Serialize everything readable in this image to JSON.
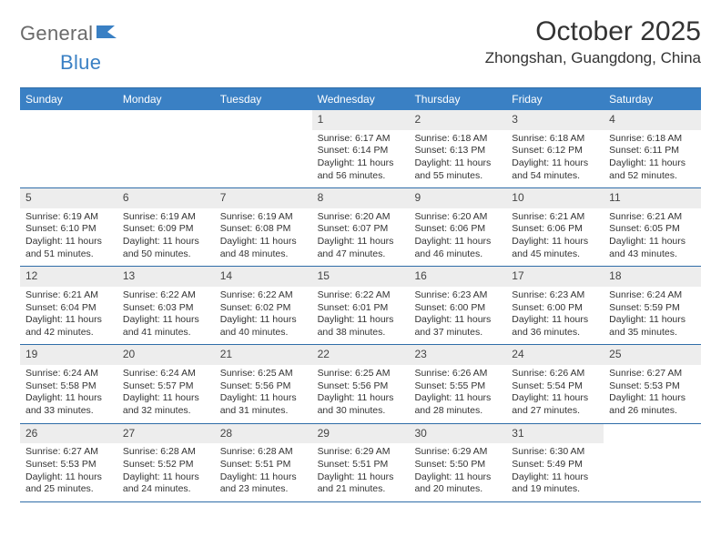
{
  "logo": {
    "word1": "General",
    "word2": "Blue"
  },
  "title": "October 2025",
  "location": "Zhongshan, Guangdong, China",
  "colors": {
    "header_bg": "#3a80c4",
    "header_border": "#2f6da8",
    "daynum_bg": "#ededed",
    "text": "#333333",
    "logo_grey": "#6a6a6a",
    "logo_blue": "#3a80c4"
  },
  "dayNames": [
    "Sunday",
    "Monday",
    "Tuesday",
    "Wednesday",
    "Thursday",
    "Friday",
    "Saturday"
  ],
  "weeks": [
    [
      {
        "empty": true
      },
      {
        "empty": true
      },
      {
        "empty": true
      },
      {
        "n": "1",
        "sr": "Sunrise: 6:17 AM",
        "ss": "Sunset: 6:14 PM",
        "dl": "Daylight: 11 hours and 56 minutes."
      },
      {
        "n": "2",
        "sr": "Sunrise: 6:18 AM",
        "ss": "Sunset: 6:13 PM",
        "dl": "Daylight: 11 hours and 55 minutes."
      },
      {
        "n": "3",
        "sr": "Sunrise: 6:18 AM",
        "ss": "Sunset: 6:12 PM",
        "dl": "Daylight: 11 hours and 54 minutes."
      },
      {
        "n": "4",
        "sr": "Sunrise: 6:18 AM",
        "ss": "Sunset: 6:11 PM",
        "dl": "Daylight: 11 hours and 52 minutes."
      }
    ],
    [
      {
        "n": "5",
        "sr": "Sunrise: 6:19 AM",
        "ss": "Sunset: 6:10 PM",
        "dl": "Daylight: 11 hours and 51 minutes."
      },
      {
        "n": "6",
        "sr": "Sunrise: 6:19 AM",
        "ss": "Sunset: 6:09 PM",
        "dl": "Daylight: 11 hours and 50 minutes."
      },
      {
        "n": "7",
        "sr": "Sunrise: 6:19 AM",
        "ss": "Sunset: 6:08 PM",
        "dl": "Daylight: 11 hours and 48 minutes."
      },
      {
        "n": "8",
        "sr": "Sunrise: 6:20 AM",
        "ss": "Sunset: 6:07 PM",
        "dl": "Daylight: 11 hours and 47 minutes."
      },
      {
        "n": "9",
        "sr": "Sunrise: 6:20 AM",
        "ss": "Sunset: 6:06 PM",
        "dl": "Daylight: 11 hours and 46 minutes."
      },
      {
        "n": "10",
        "sr": "Sunrise: 6:21 AM",
        "ss": "Sunset: 6:06 PM",
        "dl": "Daylight: 11 hours and 45 minutes."
      },
      {
        "n": "11",
        "sr": "Sunrise: 6:21 AM",
        "ss": "Sunset: 6:05 PM",
        "dl": "Daylight: 11 hours and 43 minutes."
      }
    ],
    [
      {
        "n": "12",
        "sr": "Sunrise: 6:21 AM",
        "ss": "Sunset: 6:04 PM",
        "dl": "Daylight: 11 hours and 42 minutes."
      },
      {
        "n": "13",
        "sr": "Sunrise: 6:22 AM",
        "ss": "Sunset: 6:03 PM",
        "dl": "Daylight: 11 hours and 41 minutes."
      },
      {
        "n": "14",
        "sr": "Sunrise: 6:22 AM",
        "ss": "Sunset: 6:02 PM",
        "dl": "Daylight: 11 hours and 40 minutes."
      },
      {
        "n": "15",
        "sr": "Sunrise: 6:22 AM",
        "ss": "Sunset: 6:01 PM",
        "dl": "Daylight: 11 hours and 38 minutes."
      },
      {
        "n": "16",
        "sr": "Sunrise: 6:23 AM",
        "ss": "Sunset: 6:00 PM",
        "dl": "Daylight: 11 hours and 37 minutes."
      },
      {
        "n": "17",
        "sr": "Sunrise: 6:23 AM",
        "ss": "Sunset: 6:00 PM",
        "dl": "Daylight: 11 hours and 36 minutes."
      },
      {
        "n": "18",
        "sr": "Sunrise: 6:24 AM",
        "ss": "Sunset: 5:59 PM",
        "dl": "Daylight: 11 hours and 35 minutes."
      }
    ],
    [
      {
        "n": "19",
        "sr": "Sunrise: 6:24 AM",
        "ss": "Sunset: 5:58 PM",
        "dl": "Daylight: 11 hours and 33 minutes."
      },
      {
        "n": "20",
        "sr": "Sunrise: 6:24 AM",
        "ss": "Sunset: 5:57 PM",
        "dl": "Daylight: 11 hours and 32 minutes."
      },
      {
        "n": "21",
        "sr": "Sunrise: 6:25 AM",
        "ss": "Sunset: 5:56 PM",
        "dl": "Daylight: 11 hours and 31 minutes."
      },
      {
        "n": "22",
        "sr": "Sunrise: 6:25 AM",
        "ss": "Sunset: 5:56 PM",
        "dl": "Daylight: 11 hours and 30 minutes."
      },
      {
        "n": "23",
        "sr": "Sunrise: 6:26 AM",
        "ss": "Sunset: 5:55 PM",
        "dl": "Daylight: 11 hours and 28 minutes."
      },
      {
        "n": "24",
        "sr": "Sunrise: 6:26 AM",
        "ss": "Sunset: 5:54 PM",
        "dl": "Daylight: 11 hours and 27 minutes."
      },
      {
        "n": "25",
        "sr": "Sunrise: 6:27 AM",
        "ss": "Sunset: 5:53 PM",
        "dl": "Daylight: 11 hours and 26 minutes."
      }
    ],
    [
      {
        "n": "26",
        "sr": "Sunrise: 6:27 AM",
        "ss": "Sunset: 5:53 PM",
        "dl": "Daylight: 11 hours and 25 minutes."
      },
      {
        "n": "27",
        "sr": "Sunrise: 6:28 AM",
        "ss": "Sunset: 5:52 PM",
        "dl": "Daylight: 11 hours and 24 minutes."
      },
      {
        "n": "28",
        "sr": "Sunrise: 6:28 AM",
        "ss": "Sunset: 5:51 PM",
        "dl": "Daylight: 11 hours and 23 minutes."
      },
      {
        "n": "29",
        "sr": "Sunrise: 6:29 AM",
        "ss": "Sunset: 5:51 PM",
        "dl": "Daylight: 11 hours and 21 minutes."
      },
      {
        "n": "30",
        "sr": "Sunrise: 6:29 AM",
        "ss": "Sunset: 5:50 PM",
        "dl": "Daylight: 11 hours and 20 minutes."
      },
      {
        "n": "31",
        "sr": "Sunrise: 6:30 AM",
        "ss": "Sunset: 5:49 PM",
        "dl": "Daylight: 11 hours and 19 minutes."
      },
      {
        "empty": true
      }
    ]
  ]
}
